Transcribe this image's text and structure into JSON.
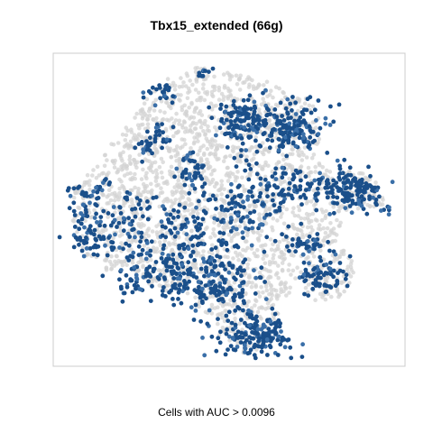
{
  "chart_data": {
    "type": "scatter",
    "title": "Tbx15_extended (66g)",
    "xlabel": "Cells with AUC > 0.0096",
    "ylabel": "",
    "axes_visible": false,
    "grid": false,
    "legend": "none",
    "series": [
      {
        "role": "background",
        "color": "#d3d3d3",
        "points": []
      },
      {
        "role": "highlighted",
        "color": "#1a4f8a",
        "points": []
      }
    ]
  },
  "colors": {
    "background_points": "#d3d3d3",
    "high_points": "#1a4f8a",
    "mid_points": "#3a6fa8",
    "frame": "#cccccc"
  }
}
